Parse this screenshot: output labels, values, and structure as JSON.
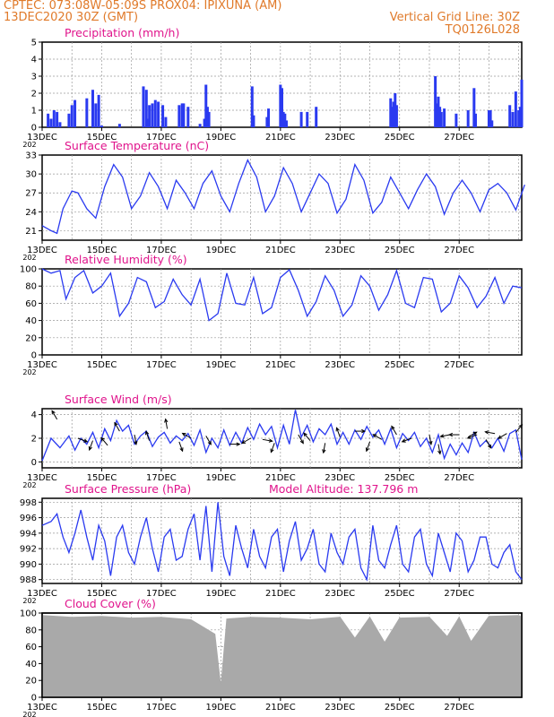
{
  "header": {
    "line1_left": "CPTEC:   073:08W-05:09S   PROX04: IPIXUNA (AM)",
    "line2_left": "13DEC2020 30Z (GMT)",
    "line2_right": "Vertical Grid Line: 30Z",
    "line3_right": "TQ0126L028"
  },
  "x_axis": {
    "labels": [
      "13DEC",
      "15DEC",
      "17DEC",
      "19DEC",
      "21DEC",
      "23DEC",
      "25DEC",
      "27DEC"
    ],
    "year_fragment": "202"
  },
  "chart_data": [
    {
      "type": "bar",
      "title": "Precipitation (mm/h)",
      "ylim": [
        0,
        5
      ],
      "yticks": [
        "0",
        "1",
        "2",
        "3",
        "4",
        "5"
      ],
      "x_days": [
        0.2,
        0.3,
        0.4,
        0.5,
        0.6,
        0.9,
        1.0,
        1.1,
        1.5,
        1.7,
        1.8,
        1.9,
        2.0,
        2.6,
        3.4,
        3.5,
        3.55,
        3.6,
        3.7,
        3.8,
        3.9,
        4.05,
        4.15,
        4.6,
        4.7,
        4.75,
        4.9,
        5.3,
        5.45,
        5.5,
        5.55,
        5.6,
        7.05,
        7.1,
        7.55,
        7.6,
        8.0,
        8.05,
        8.1,
        8.15,
        8.2,
        8.7,
        8.9,
        9.2,
        11.7,
        11.75,
        11.8,
        11.85,
        11.9,
        13.2,
        13.25,
        13.3,
        13.35,
        13.4,
        13.5,
        13.9,
        14.3,
        14.5,
        14.55,
        15.0,
        15.05,
        15.1,
        15.7,
        15.8,
        15.9,
        16.0,
        16.05,
        16.1
      ],
      "values": [
        0.8,
        0.5,
        1.0,
        0.9,
        0.3,
        0.8,
        1.3,
        1.6,
        1.7,
        2.2,
        1.4,
        1.9,
        0.1,
        0.2,
        2.4,
        2.2,
        0.5,
        1.3,
        1.4,
        1.6,
        1.5,
        1.3,
        0.6,
        1.3,
        1.4,
        1.4,
        1.2,
        0.2,
        0.5,
        2.5,
        1.2,
        0.9,
        2.4,
        0.7,
        0.6,
        1.1,
        2.5,
        2.3,
        0.9,
        0.8,
        0.4,
        0.9,
        0.9,
        1.2,
        1.7,
        1.2,
        1.5,
        2.0,
        1.3,
        3.0,
        1.4,
        1.8,
        1.2,
        0.9,
        1.1,
        0.8,
        1.0,
        2.3,
        0.8,
        1.0,
        1.0,
        0.4,
        1.3,
        0.9,
        2.1,
        1.0,
        1.2,
        2.8
      ]
    },
    {
      "type": "line",
      "title": "Surface Temperature (nC)",
      "ylim": [
        19.5,
        33
      ],
      "yticks": [
        "21",
        "24",
        "27",
        "30",
        "33"
      ],
      "series": [
        {
          "x_days": [
            0,
            0.3,
            0.5,
            0.7,
            1.0,
            1.2,
            1.5,
            1.8,
            2.1,
            2.4,
            2.7,
            3.0,
            3.3,
            3.6,
            3.9,
            4.2,
            4.5,
            4.8,
            5.1,
            5.4,
            5.7,
            6.0,
            6.3,
            6.6,
            6.9,
            7.2,
            7.5,
            7.8,
            8.1,
            8.4,
            8.7,
            9.0,
            9.3,
            9.6,
            9.9,
            10.2,
            10.5,
            10.8,
            11.1,
            11.4,
            11.7,
            12.0,
            12.3,
            12.6,
            12.9,
            13.2,
            13.5,
            13.8,
            14.1,
            14.4,
            14.7,
            15.0,
            15.3,
            15.6,
            15.9,
            16.2
          ],
          "values": [
            21.8,
            21.0,
            20.6,
            24.5,
            27.3,
            27.0,
            24.5,
            23.0,
            28.0,
            31.5,
            29.5,
            24.5,
            26.5,
            30.2,
            28.0,
            24.5,
            29.0,
            27.0,
            24.5,
            28.5,
            30.5,
            26.5,
            24.0,
            28.5,
            32.2,
            29.5,
            24.0,
            26.5,
            31.0,
            28.5,
            24.0,
            27.0,
            30.0,
            28.5,
            23.8,
            26.0,
            31.5,
            29.0,
            23.8,
            25.5,
            29.5,
            27.0,
            24.5,
            27.5,
            30.0,
            28.0,
            23.6,
            27.0,
            29.0,
            27.0,
            24.0,
            27.5,
            28.5,
            27.0,
            24.3,
            28.3
          ]
        }
      ]
    },
    {
      "type": "line",
      "title": "Relative Humidity (%)",
      "ylim": [
        0,
        100
      ],
      "yticks": [
        "0",
        "20",
        "40",
        "60",
        "80",
        "100"
      ],
      "series": [
        {
          "x_days": [
            0,
            0.3,
            0.6,
            0.8,
            1.1,
            1.4,
            1.7,
            2.0,
            2.3,
            2.6,
            2.9,
            3.2,
            3.5,
            3.8,
            4.1,
            4.4,
            4.7,
            5.0,
            5.3,
            5.6,
            5.9,
            6.2,
            6.5,
            6.8,
            7.1,
            7.4,
            7.7,
            8.0,
            8.3,
            8.6,
            8.9,
            9.2,
            9.5,
            9.8,
            10.1,
            10.4,
            10.7,
            11.0,
            11.3,
            11.6,
            11.9,
            12.2,
            12.5,
            12.8,
            13.1,
            13.4,
            13.7,
            14.0,
            14.3,
            14.6,
            14.9,
            15.2,
            15.5,
            15.8,
            16.1
          ],
          "values": [
            100,
            95,
            98,
            65,
            90,
            98,
            72,
            80,
            95,
            45,
            60,
            90,
            85,
            55,
            62,
            88,
            70,
            58,
            88,
            40,
            48,
            95,
            60,
            58,
            90,
            48,
            55,
            90,
            99,
            75,
            45,
            62,
            92,
            75,
            45,
            58,
            92,
            80,
            52,
            70,
            98,
            60,
            55,
            90,
            88,
            50,
            60,
            92,
            78,
            55,
            68,
            90,
            60,
            80,
            78
          ]
        }
      ]
    },
    {
      "type": "line",
      "title": "Surface Wind (m/s)",
      "ylim": [
        -0.5,
        4.5
      ],
      "yticks": [
        "0",
        "2",
        "4"
      ],
      "series": [
        {
          "x_days": [
            0,
            0.3,
            0.6,
            0.9,
            1.1,
            1.3,
            1.5,
            1.7,
            1.9,
            2.1,
            2.3,
            2.5,
            2.7,
            2.9,
            3.1,
            3.3,
            3.5,
            3.7,
            3.9,
            4.1,
            4.3,
            4.5,
            4.7,
            4.9,
            5.1,
            5.3,
            5.5,
            5.7,
            5.9,
            6.1,
            6.3,
            6.5,
            6.7,
            6.9,
            7.1,
            7.3,
            7.5,
            7.7,
            7.9,
            8.1,
            8.3,
            8.5,
            8.7,
            8.9,
            9.1,
            9.3,
            9.5,
            9.7,
            9.9,
            10.1,
            10.3,
            10.5,
            10.7,
            10.9,
            11.1,
            11.3,
            11.5,
            11.7,
            11.9,
            12.1,
            12.3,
            12.5,
            12.7,
            12.9,
            13.1,
            13.3,
            13.5,
            13.7,
            13.9,
            14.1,
            14.3,
            14.5,
            14.7,
            14.9,
            15.1,
            15.3,
            15.5,
            15.7,
            15.9,
            16.1
          ],
          "values": [
            0.1,
            2.0,
            1.2,
            2.2,
            1.0,
            2.0,
            1.5,
            2.5,
            1.2,
            2.8,
            1.8,
            3.5,
            2.6,
            3.1,
            1.5,
            2.2,
            2.6,
            1.3,
            2.1,
            2.5,
            1.6,
            2.2,
            1.8,
            2.4,
            1.4,
            2.7,
            0.8,
            2.0,
            1.2,
            2.7,
            1.4,
            2.5,
            1.6,
            2.9,
            1.9,
            3.2,
            2.3,
            3.0,
            1.2,
            3.1,
            1.5,
            4.4,
            2.1,
            3.1,
            1.7,
            2.8,
            2.3,
            3.2,
            1.5,
            2.5,
            1.5,
            2.7,
            1.9,
            3.0,
            2.1,
            2.7,
            1.5,
            2.8,
            1.2,
            2.4,
            1.8,
            2.5,
            1.3,
            2.0,
            0.8,
            2.3,
            0.3,
            1.5,
            0.6,
            1.6,
            0.8,
            2.5,
            1.3,
            1.8,
            1.2,
            2.0,
            0.9,
            2.4,
            2.7,
            0.2
          ]
        }
      ]
    },
    {
      "type": "line",
      "title": "Surface Pressure (hPa)",
      "annotation": "Model Altitude: 137.796 m",
      "ylim": [
        987.5,
        998.5
      ],
      "yticks": [
        "988",
        "990",
        "992",
        "994",
        "996",
        "998"
      ],
      "series": [
        {
          "x_days": [
            0,
            0.3,
            0.5,
            0.7,
            0.9,
            1.1,
            1.3,
            1.5,
            1.7,
            1.9,
            2.1,
            2.3,
            2.5,
            2.7,
            2.9,
            3.1,
            3.3,
            3.5,
            3.7,
            3.9,
            4.1,
            4.3,
            4.5,
            4.7,
            4.9,
            5.1,
            5.3,
            5.5,
            5.7,
            5.9,
            6.1,
            6.3,
            6.5,
            6.7,
            6.9,
            7.1,
            7.3,
            7.5,
            7.7,
            7.9,
            8.1,
            8.3,
            8.5,
            8.7,
            8.9,
            9.1,
            9.3,
            9.5,
            9.7,
            9.9,
            10.1,
            10.3,
            10.5,
            10.7,
            10.9,
            11.1,
            11.3,
            11.5,
            11.7,
            11.9,
            12.1,
            12.3,
            12.5,
            12.7,
            12.9,
            13.1,
            13.3,
            13.5,
            13.7,
            13.9,
            14.1,
            14.3,
            14.5,
            14.7,
            14.9,
            15.1,
            15.3,
            15.5,
            15.7,
            15.9,
            16.1
          ],
          "values": [
            995.0,
            995.5,
            996.5,
            993.5,
            991.5,
            994.0,
            997.0,
            993.5,
            990.5,
            995.0,
            993.0,
            988.5,
            993.5,
            995.0,
            991.5,
            990.0,
            993.5,
            996.0,
            992.0,
            989.0,
            993.5,
            994.5,
            990.5,
            991.0,
            994.5,
            996.5,
            990.5,
            997.5,
            989.0,
            998.0,
            991.0,
            988.5,
            995.0,
            992.0,
            989.5,
            994.5,
            991.0,
            989.5,
            993.5,
            994.5,
            989.0,
            993.0,
            995.5,
            990.5,
            992.0,
            994.5,
            990.0,
            989.0,
            994.0,
            991.5,
            990.0,
            993.5,
            994.5,
            989.5,
            988.0,
            995.0,
            990.5,
            989.5,
            992.5,
            995.0,
            990.0,
            989.0,
            993.5,
            994.5,
            990.0,
            988.5,
            994.0,
            991.5,
            989.0,
            994.0,
            993.0,
            989.0,
            990.5,
            993.5,
            993.5,
            990.0,
            989.5,
            991.5,
            992.5,
            989.0,
            988.0
          ]
        }
      ]
    },
    {
      "type": "area",
      "title": "Cloud Cover (%)",
      "ylim": [
        0,
        100
      ],
      "yticks": [
        "0",
        "20",
        "40",
        "60",
        "80",
        "100"
      ],
      "series": [
        {
          "x_days": [
            0,
            1,
            2,
            3,
            4,
            5,
            5.8,
            6.0,
            6.2,
            7,
            8,
            9,
            10,
            10.5,
            11,
            11.5,
            12,
            13,
            13.6,
            14,
            14.4,
            15,
            16,
            16.1
          ],
          "values": [
            97,
            95,
            96,
            94,
            95,
            92,
            75,
            12,
            93,
            95,
            94,
            92,
            95,
            70,
            95,
            65,
            94,
            95,
            72,
            95,
            66,
            96,
            97,
            95
          ]
        }
      ]
    }
  ]
}
